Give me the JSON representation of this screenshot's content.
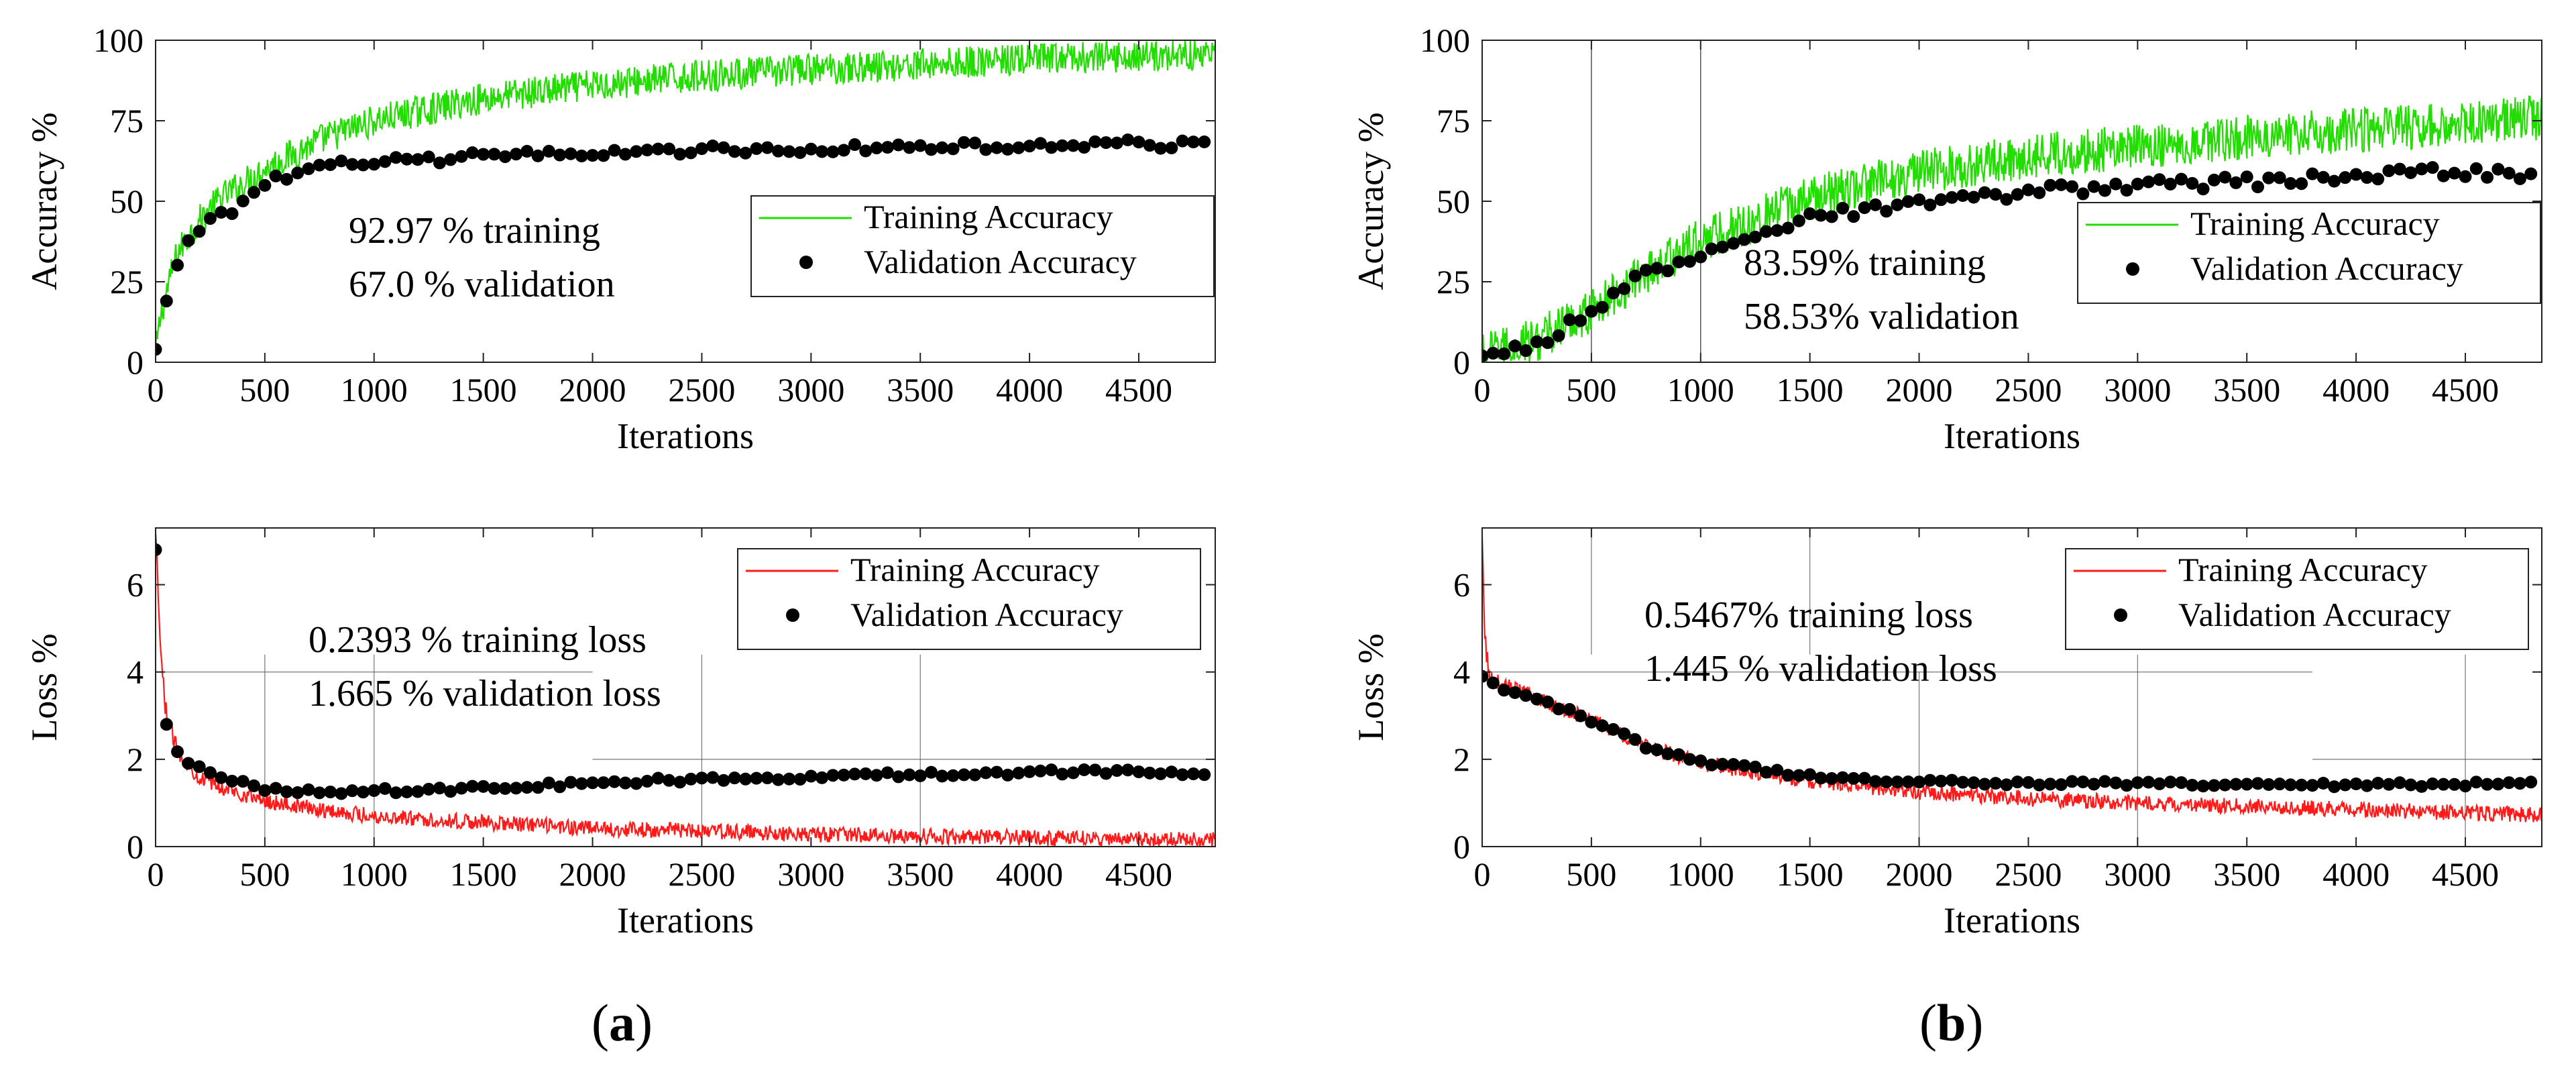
{
  "figure": {
    "panel_labels": [
      "a",
      "b"
    ]
  },
  "colors": {
    "training_accuracy": "#22dd00",
    "training_loss": "#ff1a1a",
    "validation": "#000000",
    "guide_lines": "#555555"
  },
  "chart_data": [
    {
      "id": "a-accuracy",
      "panel": "a",
      "type": "line",
      "xlabel": "Iterations",
      "ylabel": "Accuracy %",
      "xlim": [
        0,
        4850
      ],
      "ylim": [
        0,
        100
      ],
      "xticks": [
        0,
        500,
        1000,
        1500,
        2000,
        2500,
        3000,
        3500,
        4000,
        4500
      ],
      "yticks": [
        0,
        25,
        50,
        75,
        100
      ],
      "legend": {
        "placement": "center-right",
        "entries": [
          "Training Accuracy",
          "Validation Accuracy"
        ]
      },
      "annotation": [
        "92.97 % training",
        "67.0 % validation"
      ],
      "series": [
        {
          "name": "Training Accuracy",
          "kind": "noisy-line",
          "x": [
            0,
            25,
            50,
            100,
            200,
            300,
            500,
            750,
            1000,
            1500,
            2000,
            2500,
            3000,
            3500,
            4000,
            4500,
            4850
          ],
          "y": [
            3,
            15,
            22,
            34,
            44,
            51,
            60,
            69,
            75,
            82,
            86,
            89,
            91,
            92.5,
            94,
            95,
            96
          ],
          "noise": 5
        },
        {
          "name": "Validation Accuracy",
          "kind": "dots",
          "x": [
            0,
            50,
            100,
            150,
            200,
            250,
            300,
            350,
            400,
            450,
            500,
            550,
            600,
            650,
            700,
            800,
            1000,
            1500,
            2000,
            2500,
            3000,
            3500,
            4000,
            4500,
            4850
          ],
          "y": [
            4,
            19,
            31,
            37,
            41,
            44,
            46,
            47,
            50,
            53,
            56,
            57,
            57,
            58,
            59,
            61,
            62,
            64,
            65,
            66,
            66,
            67,
            67,
            68,
            67
          ],
          "jitter": 1.3,
          "step": 50
        }
      ]
    },
    {
      "id": "b-accuracy",
      "panel": "b",
      "type": "line",
      "xlabel": "Iterations",
      "ylabel": "Accuracy %",
      "xlim": [
        0,
        4850
      ],
      "ylim": [
        0,
        100
      ],
      "xticks": [
        0,
        500,
        1000,
        1500,
        2000,
        2500,
        3000,
        3500,
        4000,
        4500
      ],
      "yticks": [
        0,
        25,
        50,
        75,
        100
      ],
      "vlines": [
        500,
        1000
      ],
      "legend": {
        "placement": "center-right",
        "entries": [
          "Training Accuracy",
          "Validation Accuracy"
        ]
      },
      "annotation": [
        "83.59% training",
        "58.53% validation"
      ],
      "series": [
        {
          "name": "Training Accuracy",
          "kind": "noisy-line",
          "x": [
            0,
            250,
            500,
            750,
            1000,
            1500,
            2000,
            2500,
            3000,
            3500,
            4000,
            4500,
            4850
          ],
          "y": [
            2,
            7,
            16,
            28,
            38,
            51,
            59,
            64,
            67,
            70,
            72,
            74,
            76
          ],
          "noise": 7
        },
        {
          "name": "Validation Accuracy",
          "kind": "dots",
          "x": [
            0,
            250,
            500,
            750,
            1000,
            1250,
            1500,
            2000,
            2500,
            3000,
            3500,
            4000,
            4500,
            4850
          ],
          "y": [
            2,
            6,
            15,
            28,
            33,
            40,
            45,
            49,
            53,
            55,
            56,
            58,
            59,
            58
          ],
          "jitter": 1.8,
          "step": 50
        }
      ]
    },
    {
      "id": "a-loss",
      "panel": "a",
      "type": "line",
      "xlabel": "Iterations",
      "ylabel": "Loss %",
      "xlim": [
        0,
        4850
      ],
      "ylim": [
        0,
        7.3
      ],
      "xticks": [
        0,
        500,
        1000,
        1500,
        2000,
        2500,
        3000,
        3500,
        4000,
        4500
      ],
      "yticks": [
        0,
        2,
        4,
        6
      ],
      "guide_vlines": [
        [
          500,
          0,
          4.4
        ],
        [
          1000,
          0,
          4.4
        ],
        [
          2500,
          0,
          4.4
        ],
        [
          3500,
          0,
          4.4
        ]
      ],
      "guide_hlines": [
        [
          0,
          2000,
          4.0
        ],
        [
          2000,
          4850,
          2.0
        ]
      ],
      "legend": {
        "placement": "top-right",
        "entries": [
          "Training Accuracy",
          "Validation Accuracy"
        ]
      },
      "annotation": [
        "0.2393 % training loss",
        "1.665 % validation loss"
      ],
      "series": [
        {
          "name": "Training Accuracy",
          "kind": "noisy-line",
          "x": [
            0,
            10,
            25,
            50,
            100,
            150,
            200,
            300,
            500,
            750,
            1000,
            1500,
            2000,
            2500,
            3000,
            3500,
            4000,
            4500,
            4850
          ],
          "y": [
            7.1,
            6.0,
            4.2,
            3.0,
            2.2,
            1.85,
            1.6,
            1.35,
            1.05,
            0.85,
            0.7,
            0.55,
            0.42,
            0.35,
            0.28,
            0.24,
            0.2,
            0.17,
            0.15
          ],
          "noise": 0.18
        },
        {
          "name": "Validation Accuracy",
          "kind": "dots",
          "x": [
            0,
            50,
            100,
            150,
            200,
            250,
            300,
            400,
            500,
            750,
            1000,
            1500,
            2000,
            2500,
            3000,
            3500,
            4000,
            4500,
            4850
          ],
          "y": [
            6.8,
            2.8,
            2.2,
            1.9,
            1.8,
            1.7,
            1.6,
            1.5,
            1.3,
            1.25,
            1.28,
            1.33,
            1.45,
            1.55,
            1.6,
            1.65,
            1.7,
            1.7,
            1.68
          ],
          "jitter": 0.06,
          "step": 50
        }
      ]
    },
    {
      "id": "b-loss",
      "panel": "b",
      "type": "line",
      "xlabel": "Iterations",
      "ylabel": "Loss %",
      "xlim": [
        0,
        4850
      ],
      "ylim": [
        0,
        7.3
      ],
      "xticks": [
        0,
        500,
        1000,
        1500,
        2000,
        2500,
        3000,
        3500,
        4000,
        4500
      ],
      "yticks": [
        0,
        2,
        4,
        6
      ],
      "guide_vlines": [
        [
          500,
          4.4,
          7.3
        ],
        [
          1500,
          4.4,
          7.3
        ],
        [
          2000,
          0,
          4.0
        ],
        [
          3000,
          0,
          4.4
        ],
        [
          4500,
          0,
          4.4
        ]
      ],
      "guide_hlines": [
        [
          0,
          3800,
          4.0
        ],
        [
          3800,
          4850,
          2.0
        ]
      ],
      "legend": {
        "placement": "top-right",
        "entries": [
          "Training Accuracy",
          "Validation Accuracy"
        ]
      },
      "annotation": [
        "0.5467% training loss",
        "1.445 % validation loss"
      ],
      "series": [
        {
          "name": "Training Accuracy",
          "kind": "noisy-line",
          "x": [
            0,
            10,
            30,
            100,
            250,
            500,
            750,
            1000,
            1500,
            2000,
            2500,
            3000,
            3500,
            4000,
            4500,
            4850
          ],
          "y": [
            7.0,
            5.0,
            3.9,
            3.7,
            3.4,
            2.9,
            2.3,
            1.9,
            1.5,
            1.25,
            1.1,
            1.0,
            0.92,
            0.85,
            0.78,
            0.72
          ],
          "noise": 0.18
        },
        {
          "name": "Validation Accuracy",
          "kind": "dots",
          "x": [
            0,
            100,
            250,
            500,
            750,
            1000,
            1500,
            2000,
            2500,
            3000,
            3500,
            4000,
            4500,
            4850
          ],
          "y": [
            3.9,
            3.6,
            3.4,
            2.9,
            2.3,
            1.95,
            1.6,
            1.5,
            1.45,
            1.45,
            1.42,
            1.42,
            1.43,
            1.45
          ],
          "jitter": 0.05,
          "step": 50
        }
      ]
    }
  ]
}
